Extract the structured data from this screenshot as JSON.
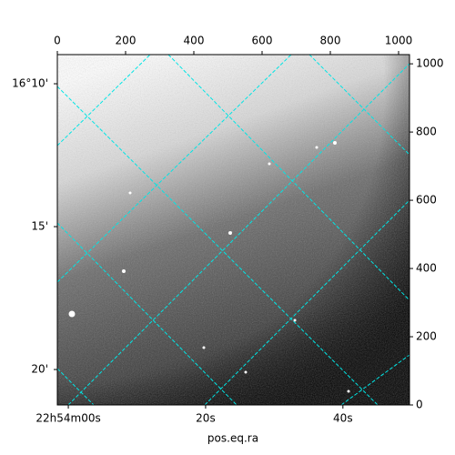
{
  "chart_data": {
    "type": "image",
    "xlabel": "pos.eq.ra",
    "xlim": [
      0,
      1032
    ],
    "xticks": [
      0,
      200,
      400,
      600,
      800,
      1000
    ],
    "ylim": [
      0,
      1027
    ],
    "yticks": [
      0,
      200,
      400,
      600,
      800,
      1000
    ],
    "ra_lim": [
      -1.6,
      49.7
    ],
    "ra_ticks": [
      {
        "value": 0,
        "label": "22h54m00s"
      },
      {
        "value": 20,
        "label": "20s"
      },
      {
        "value": 40,
        "label": "40s"
      }
    ],
    "dec_lim": [
      21.24,
      8.98
    ],
    "dec_ticks": [
      {
        "value": 10,
        "label": "16°10'"
      },
      {
        "value": 15,
        "label": "15'"
      },
      {
        "value": 20,
        "label": "20'"
      }
    ],
    "colormap": "gray",
    "grid_color": "#00e5e5"
  }
}
